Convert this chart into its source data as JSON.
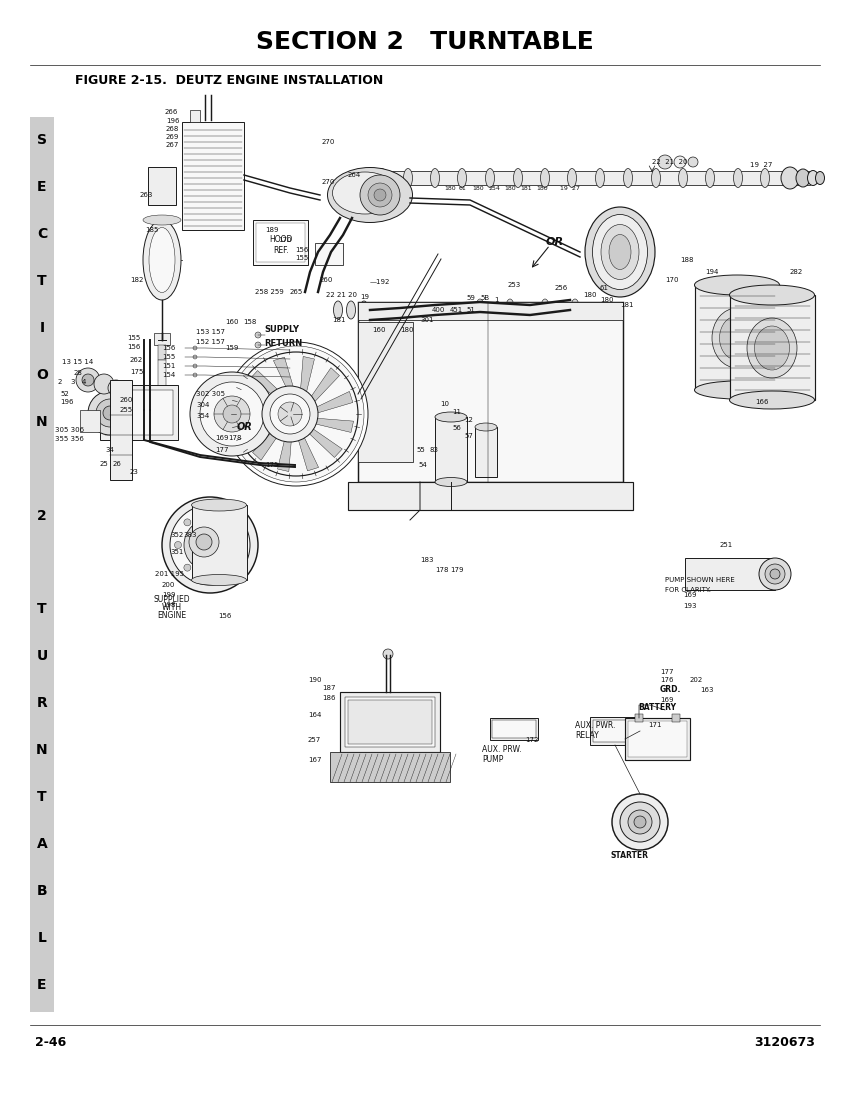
{
  "title": "SECTION 2   TURNTABLE",
  "figure_label": "FIGURE 2-15.  DEUTZ ENGINE INSTALLATION",
  "page_left": "2-46",
  "page_right": "3120673",
  "bg_color": "#ffffff",
  "title_fontsize": 18,
  "figure_label_fontsize": 9,
  "page_fontsize": 9,
  "sidebar_text": [
    "S",
    "E",
    "C",
    "T",
    "I",
    "O",
    "N",
    "",
    "2",
    "",
    "T",
    "U",
    "R",
    "N",
    "T",
    "A",
    "B",
    "L",
    "E"
  ],
  "sidebar_bg": "#cccccc",
  "lc": "#1a1a1a",
  "lw": 0.7
}
